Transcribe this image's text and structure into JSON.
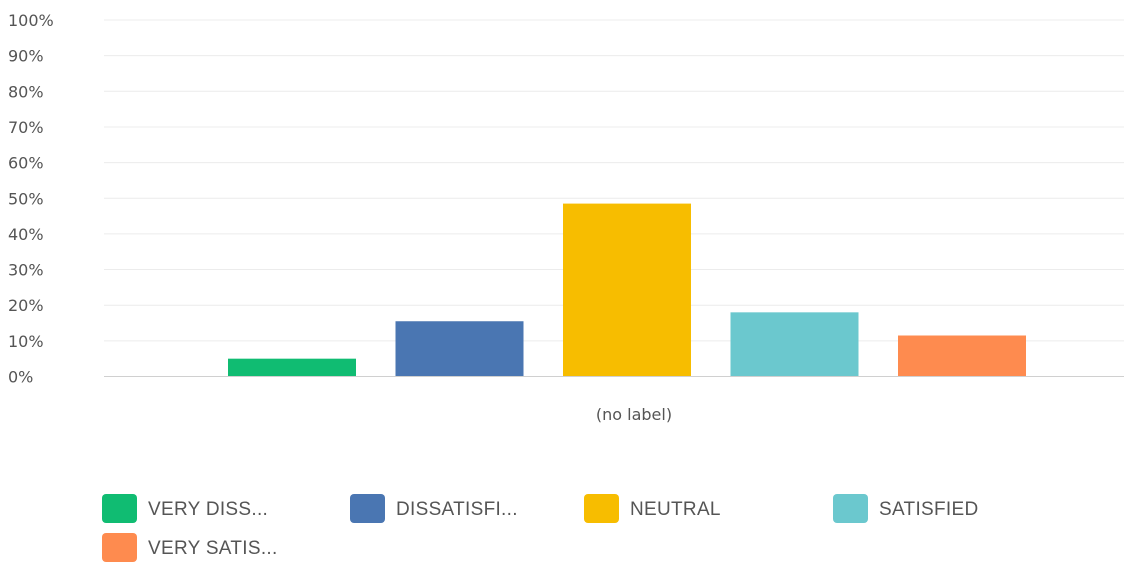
{
  "chart_data": {
    "type": "bar",
    "categories": [
      "(no label)"
    ],
    "series": [
      {
        "name": "VERY DISS...",
        "color": "#10BC72",
        "values": [
          5
        ]
      },
      {
        "name": "DISSATISFI...",
        "color": "#4A76B2",
        "values": [
          15.5
        ]
      },
      {
        "name": "NEUTRAL",
        "color": "#F7BD00",
        "values": [
          48.5
        ]
      },
      {
        "name": "SATISFIED",
        "color": "#6BC8CE",
        "values": [
          18
        ]
      },
      {
        "name": "VERY SATIS...",
        "color": "#FE8B4F",
        "values": [
          11.5
        ]
      }
    ],
    "y_ticks": [
      "0%",
      "10%",
      "20%",
      "30%",
      "40%",
      "50%",
      "60%",
      "70%",
      "80%",
      "90%",
      "100%"
    ],
    "ylim": [
      0,
      100
    ],
    "grid": true,
    "legend_position": "bottom"
  }
}
